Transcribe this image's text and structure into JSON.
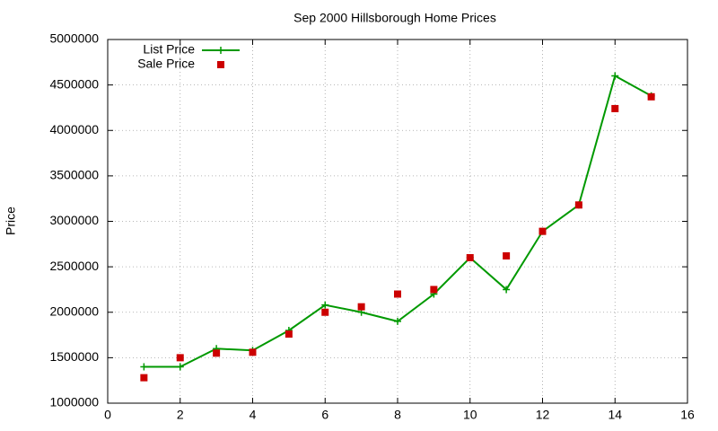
{
  "chart_data": {
    "type": "line",
    "title": "Sep 2000 Hillsborough Home Prices",
    "y_label": "Price",
    "x": [
      1,
      2,
      3,
      4,
      5,
      6,
      7,
      8,
      9,
      10,
      11,
      12,
      13,
      14,
      15
    ],
    "series": [
      {
        "name": "List Price",
        "color": "#009900",
        "mode": "linespoints",
        "values": [
          1400000,
          1400000,
          1600000,
          1580000,
          1800000,
          2080000,
          2000000,
          1900000,
          2200000,
          2600000,
          2250000,
          2890000,
          3180000,
          4600000,
          4380000
        ]
      },
      {
        "name": "Sale Price",
        "color": "#cc0000",
        "mode": "points",
        "values": [
          1280000,
          1500000,
          1550000,
          1560000,
          1760000,
          2000000,
          2060000,
          2200000,
          2250000,
          2600000,
          2620000,
          2890000,
          3180000,
          4240000,
          4370000
        ]
      }
    ],
    "xlim": [
      0,
      16
    ],
    "xticks": [
      0,
      2,
      4,
      6,
      8,
      10,
      12,
      14,
      16
    ],
    "ylim": [
      1000000,
      5000000
    ],
    "yticks": [
      1000000,
      1500000,
      2000000,
      2500000,
      3000000,
      3500000,
      4000000,
      4500000,
      5000000
    ],
    "grid": true,
    "legend": "top-left"
  }
}
